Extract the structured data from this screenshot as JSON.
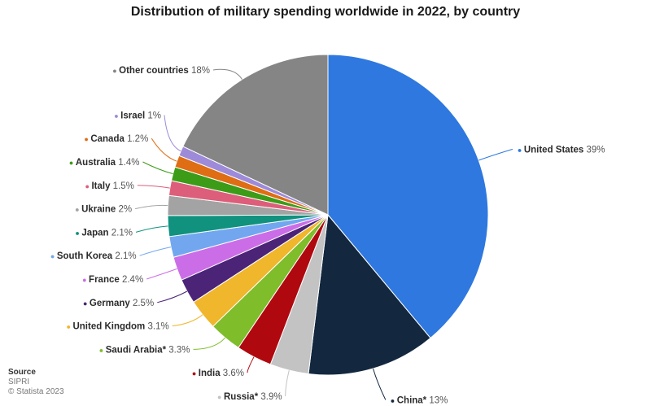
{
  "chart_data": {
    "type": "pie",
    "title": "Distribution of military spending worldwide in 2022, by country",
    "unit": "%",
    "slices": [
      {
        "label": "United States",
        "value": 39,
        "display": "39%",
        "color": "#2e78df"
      },
      {
        "label": "China*",
        "value": 13,
        "display": "13%",
        "color": "#13283f"
      },
      {
        "label": "Russia*",
        "value": 3.9,
        "display": "3.9%",
        "color": "#c3c3c3"
      },
      {
        "label": "India",
        "value": 3.6,
        "display": "3.6%",
        "color": "#b0080f"
      },
      {
        "label": "Saudi Arabia*",
        "value": 3.3,
        "display": "3.3%",
        "color": "#7fbd2b"
      },
      {
        "label": "United Kingdom",
        "value": 3.1,
        "display": "3.1%",
        "color": "#f0b62c"
      },
      {
        "label": "Germany",
        "value": 2.5,
        "display": "2.5%",
        "color": "#4b2478"
      },
      {
        "label": "France",
        "value": 2.4,
        "display": "2.4%",
        "color": "#cc6de8"
      },
      {
        "label": "South Korea",
        "value": 2.1,
        "display": "2.1%",
        "color": "#72a7f0"
      },
      {
        "label": "Japan",
        "value": 2.1,
        "display": "2.1%",
        "color": "#10927f"
      },
      {
        "label": "Ukraine",
        "value": 2,
        "display": "2%",
        "color": "#a3a3a3"
      },
      {
        "label": "Italy",
        "value": 1.5,
        "display": "1.5%",
        "color": "#dd5e7a"
      },
      {
        "label": "Australia",
        "value": 1.4,
        "display": "1.4%",
        "color": "#3c9c18"
      },
      {
        "label": "Canada",
        "value": 1.2,
        "display": "1.2%",
        "color": "#de6d14"
      },
      {
        "label": "Israel",
        "value": 1,
        "display": "1%",
        "color": "#9d8ad9"
      },
      {
        "label": "Other countries",
        "value": 18,
        "display": "18%",
        "color": "#858585"
      }
    ]
  },
  "source": {
    "heading": "Source",
    "name": "SIPRI",
    "copyright": "© Statista 2023"
  }
}
